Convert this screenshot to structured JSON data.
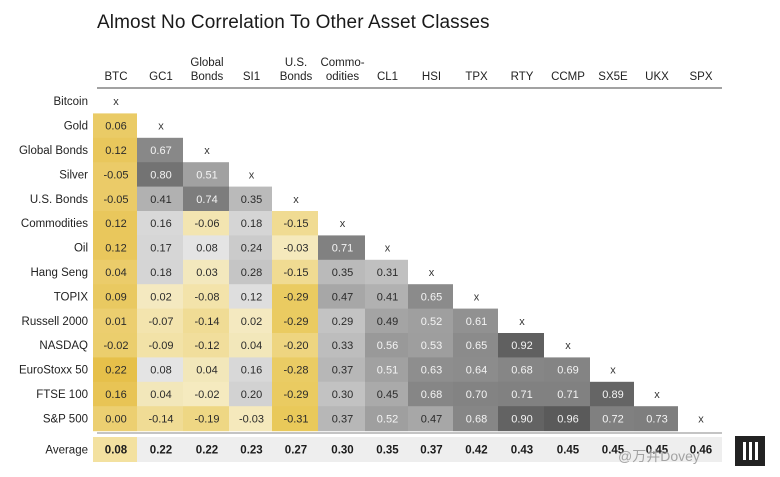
{
  "chart_data": {
    "type": "heatmap",
    "title": "Almost No Correlation To Other Asset Classes",
    "columns": [
      [
        "BTC"
      ],
      [
        "GC1"
      ],
      [
        "Global",
        "Bonds"
      ],
      [
        "SI1"
      ],
      [
        "U.S.",
        "Bonds"
      ],
      [
        "Commo-",
        "odities"
      ],
      [
        "CL1"
      ],
      [
        "HSI"
      ],
      [
        "TPX"
      ],
      [
        "RTY"
      ],
      [
        "CCMP"
      ],
      [
        "SX5E"
      ],
      [
        "UKX"
      ],
      [
        "SPX"
      ]
    ],
    "rows": [
      "Bitcoin",
      "Gold",
      "Global Bonds",
      "Silver",
      "U.S. Bonds",
      "Commodities",
      "Oil",
      "Hang Seng",
      "TOPIX",
      "Russell 2000",
      "NASDAQ",
      "EuroStoxx 50",
      "FTSE 100",
      "S&P 500"
    ],
    "diagonal_mark": "x",
    "values": [
      [],
      [
        "0.06"
      ],
      [
        "0.12",
        "0.67"
      ],
      [
        "-0.05",
        "0.80",
        "0.51"
      ],
      [
        "-0.05",
        "0.41",
        "0.74",
        "0.35"
      ],
      [
        "0.12",
        "0.16",
        "-0.06",
        "0.18",
        "-0.15"
      ],
      [
        "0.12",
        "0.17",
        "0.08",
        "0.24",
        "-0.03",
        "0.71"
      ],
      [
        "0.04",
        "0.18",
        "0.03",
        "0.28",
        "-0.15",
        "0.35",
        "0.31"
      ],
      [
        "0.09",
        "0.02",
        "-0.08",
        "0.12",
        "-0.29",
        "0.47",
        "0.41",
        "0.65"
      ],
      [
        "0.01",
        "-0.07",
        "-0.14",
        "0.02",
        "-0.29",
        "0.29",
        "0.49",
        "0.52",
        "0.61"
      ],
      [
        "-0.02",
        "-0.09",
        "-0.12",
        "0.04",
        "-0.20",
        "0.33",
        "0.56",
        "0.53",
        "0.65",
        "0.92"
      ],
      [
        "0.22",
        "0.08",
        "0.04",
        "0.16",
        "-0.28",
        "0.37",
        "0.51",
        "0.63",
        "0.64",
        "0.68",
        "0.69"
      ],
      [
        "0.16",
        "0.04",
        "-0.02",
        "0.20",
        "-0.29",
        "0.30",
        "0.45",
        "0.68",
        "0.70",
        "0.71",
        "0.71",
        "0.89"
      ],
      [
        "0.00",
        "-0.14",
        "-0.19",
        "-0.03",
        "-0.31",
        "0.37",
        "0.52",
        "0.47",
        "0.68",
        "0.90",
        "0.96",
        "0.72",
        "0.73"
      ]
    ],
    "average_label": "Average",
    "average": [
      "0.08",
      "0.22",
      "0.22",
      "0.23",
      "0.27",
      "0.30",
      "0.35",
      "0.37",
      "0.42",
      "0.43",
      "0.45",
      "0.45",
      "0.45",
      "0.46"
    ],
    "colors": {
      "btc_high": "#e6c04a",
      "btc_low": "#f3e1a0",
      "negative_dark": "#e9c95a",
      "neutral_light": "#f1f1f1",
      "positive_dark": "#5a5a5a",
      "average_bg": "#eeeeee",
      "average_btc_bg": "#f3e1a0"
    }
  },
  "watermark": "@万井Dovey"
}
